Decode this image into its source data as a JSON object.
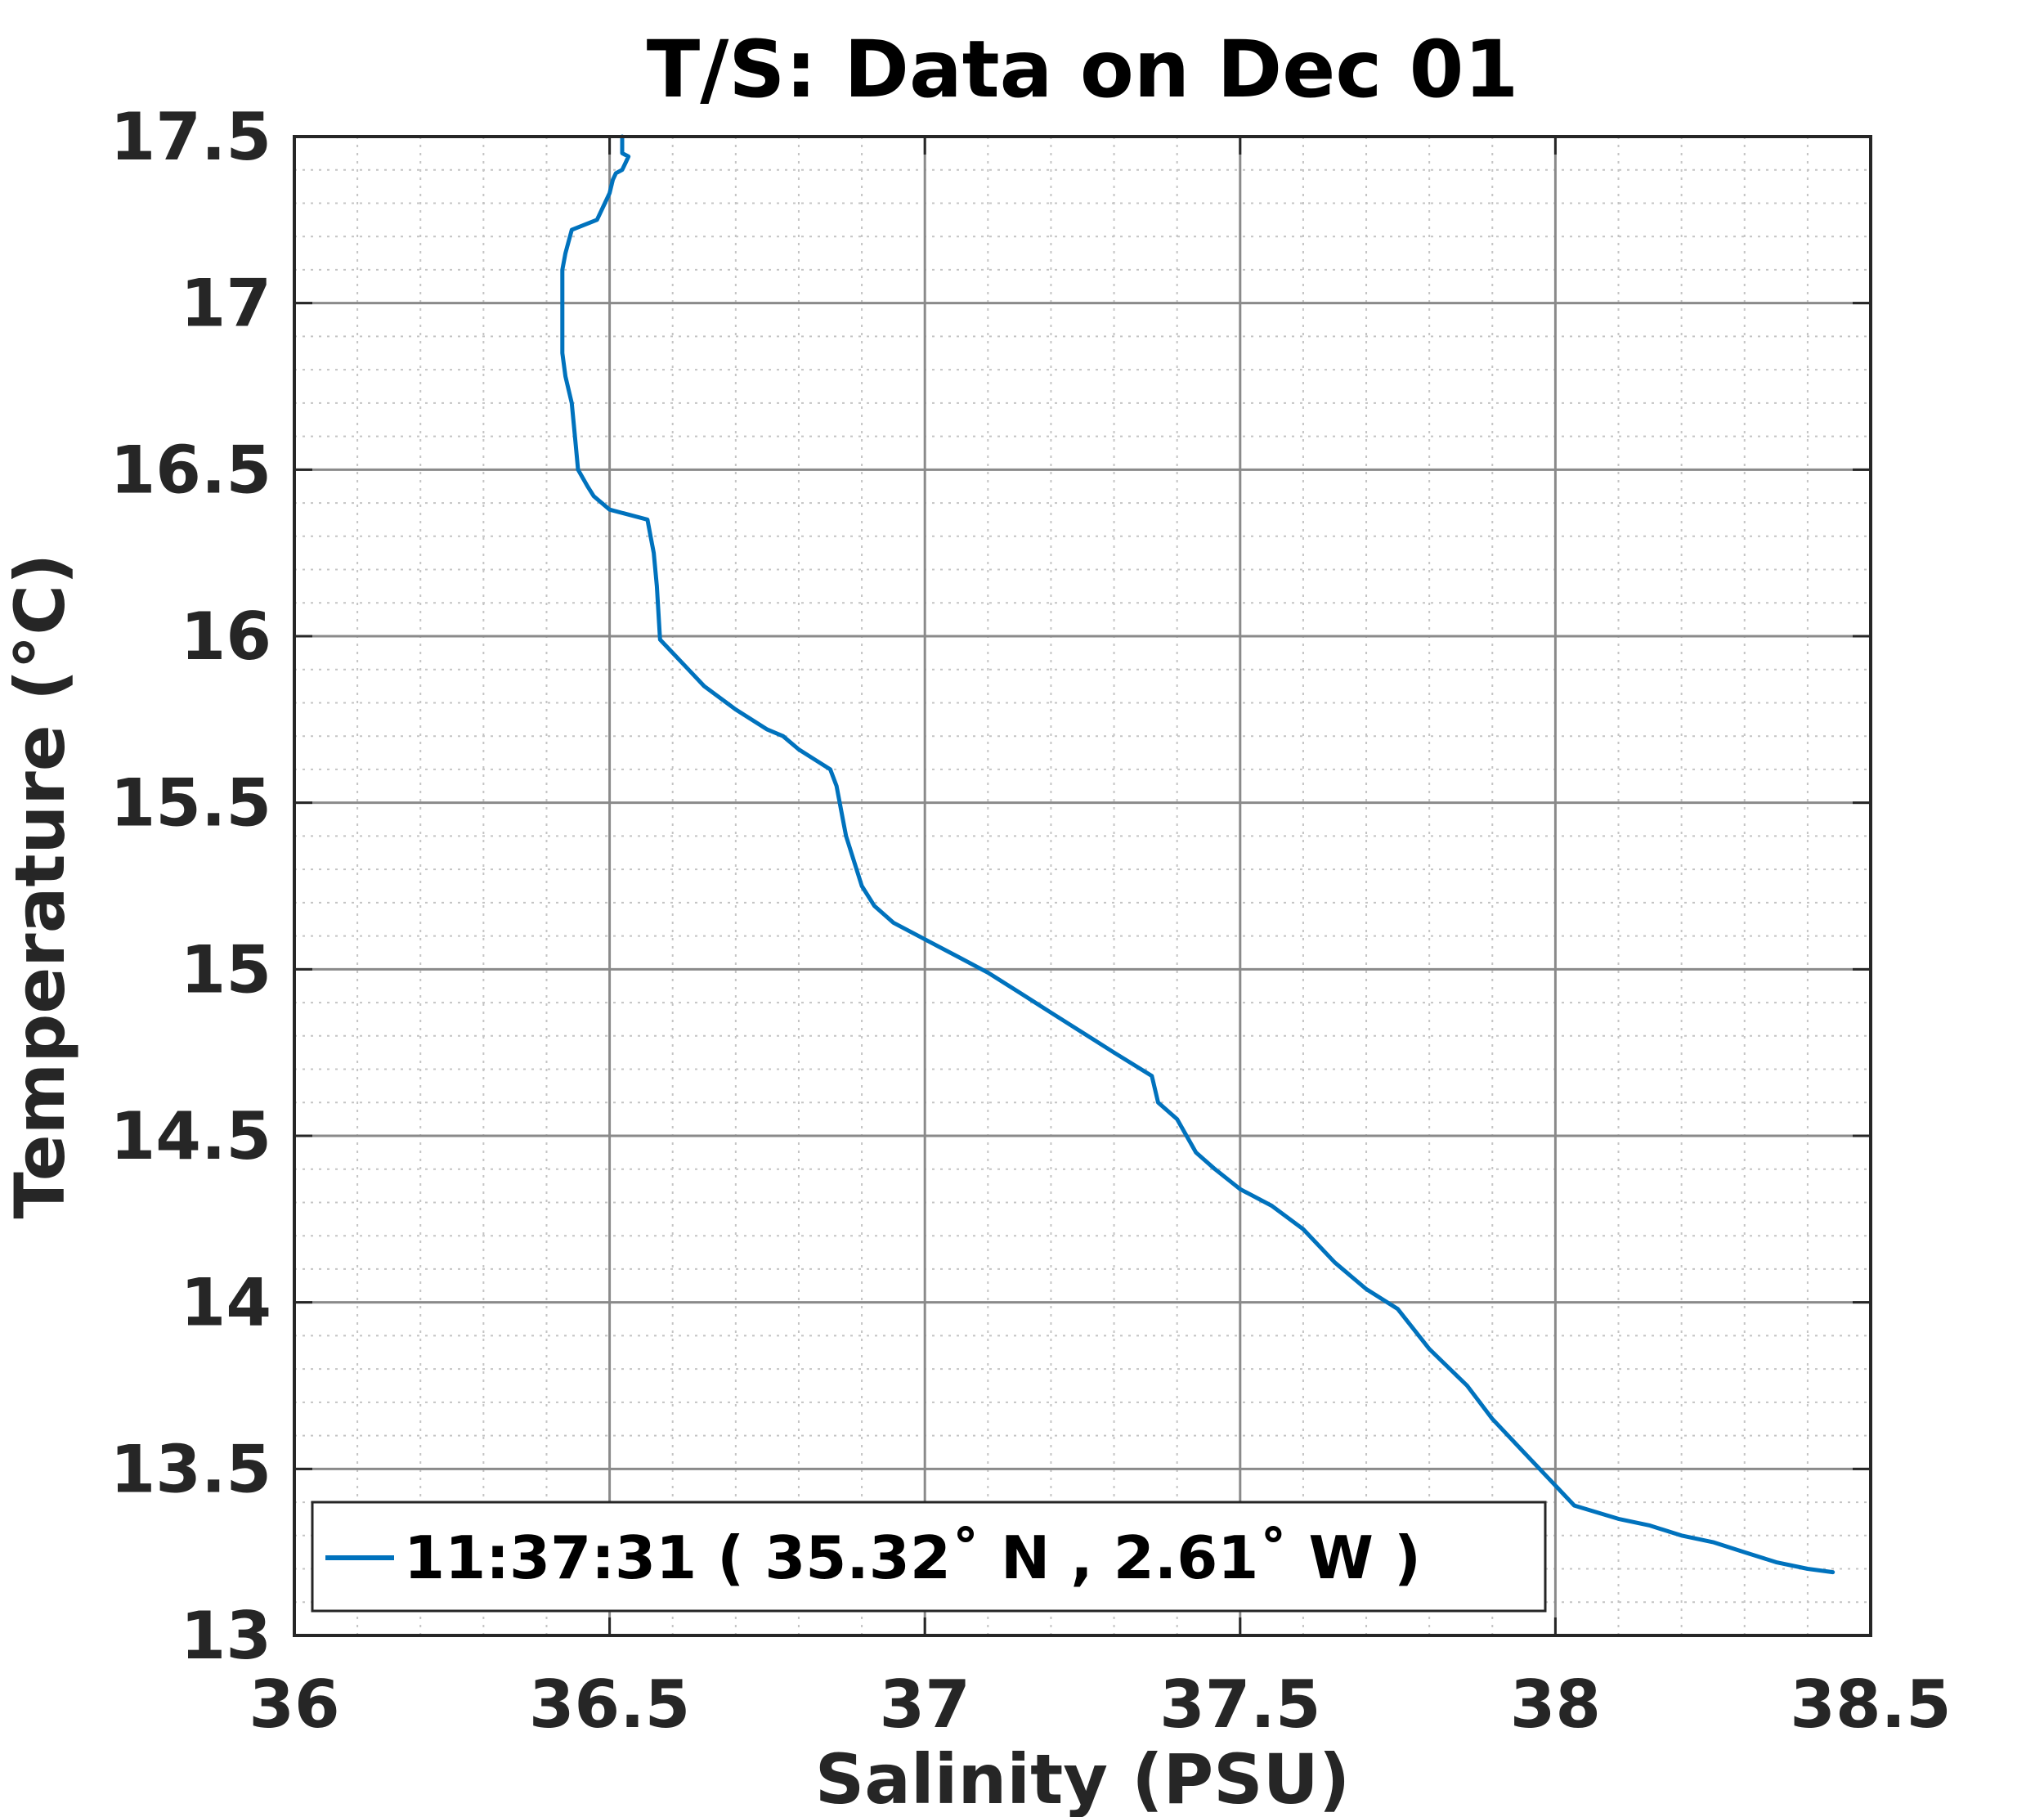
{
  "chart_data": {
    "type": "line",
    "title": "T/S: Data on Dec 01",
    "xlabel": "Salinity (PSU)",
    "ylabel": "Temperature (°C)",
    "xlim": [
      36,
      38.5
    ],
    "ylim": [
      13,
      17.5
    ],
    "x_ticks": [
      36,
      36.5,
      37,
      37.5,
      38,
      38.5
    ],
    "y_ticks": [
      13,
      13.5,
      14,
      14.5,
      15,
      15.5,
      16,
      16.5,
      17,
      17.5
    ],
    "x_tick_labels": [
      "36",
      "36.5",
      "37",
      "37.5",
      "38",
      "38.5"
    ],
    "y_tick_labels": [
      "13",
      "13.5",
      "14",
      "14.5",
      "15",
      "15.5",
      "16",
      "16.5",
      "17",
      "17.5"
    ],
    "grid": true,
    "minor_grid": true,
    "legend_position": "bottom-left",
    "series": [
      {
        "name": "11:37:31 ( 35.32˚ N , 2.61˚ W )",
        "color": "#0072BD",
        "x": [
          36.52,
          36.52,
          36.53,
          36.525,
          36.52,
          36.51,
          36.505,
          36.5,
          36.49,
          36.48,
          36.44,
          36.43,
          36.425,
          36.425,
          36.425,
          36.425,
          36.43,
          36.44,
          36.445,
          36.45,
          36.465,
          36.475,
          36.5,
          36.56,
          36.565,
          36.57,
          36.575,
          36.58,
          36.6,
          36.625,
          36.65,
          36.7,
          36.75,
          36.775,
          36.8,
          36.825,
          36.85,
          36.86,
          36.87,
          36.875,
          36.9,
          36.92,
          36.95,
          37.0,
          37.05,
          37.1,
          37.15,
          37.2,
          37.25,
          37.3,
          37.36,
          37.37,
          37.4,
          37.43,
          37.46,
          37.5,
          37.55,
          37.6,
          37.65,
          37.7,
          37.75,
          37.8,
          37.86,
          37.9,
          37.95,
          38.0,
          38.03,
          38.1,
          38.15,
          38.2,
          38.25,
          38.3,
          38.35,
          38.4,
          38.44
        ],
        "y": [
          17.5,
          17.45,
          17.44,
          17.42,
          17.4,
          17.39,
          17.37,
          17.33,
          17.29,
          17.25,
          17.22,
          17.15,
          17.1,
          17.0,
          16.9,
          16.85,
          16.78,
          16.7,
          16.6,
          16.5,
          16.45,
          16.42,
          16.38,
          16.35,
          16.3,
          16.25,
          16.15,
          15.99,
          15.95,
          15.9,
          15.85,
          15.78,
          15.72,
          15.7,
          15.66,
          15.63,
          15.6,
          15.55,
          15.45,
          15.4,
          15.25,
          15.19,
          15.14,
          15.09,
          15.04,
          14.99,
          14.93,
          14.87,
          14.81,
          14.75,
          14.68,
          14.6,
          14.55,
          14.45,
          14.4,
          14.34,
          14.29,
          14.22,
          14.12,
          14.04,
          13.98,
          13.86,
          13.75,
          13.65,
          13.55,
          13.45,
          13.39,
          13.35,
          13.33,
          13.3,
          13.28,
          13.25,
          13.22,
          13.2,
          13.19
        ]
      }
    ]
  }
}
